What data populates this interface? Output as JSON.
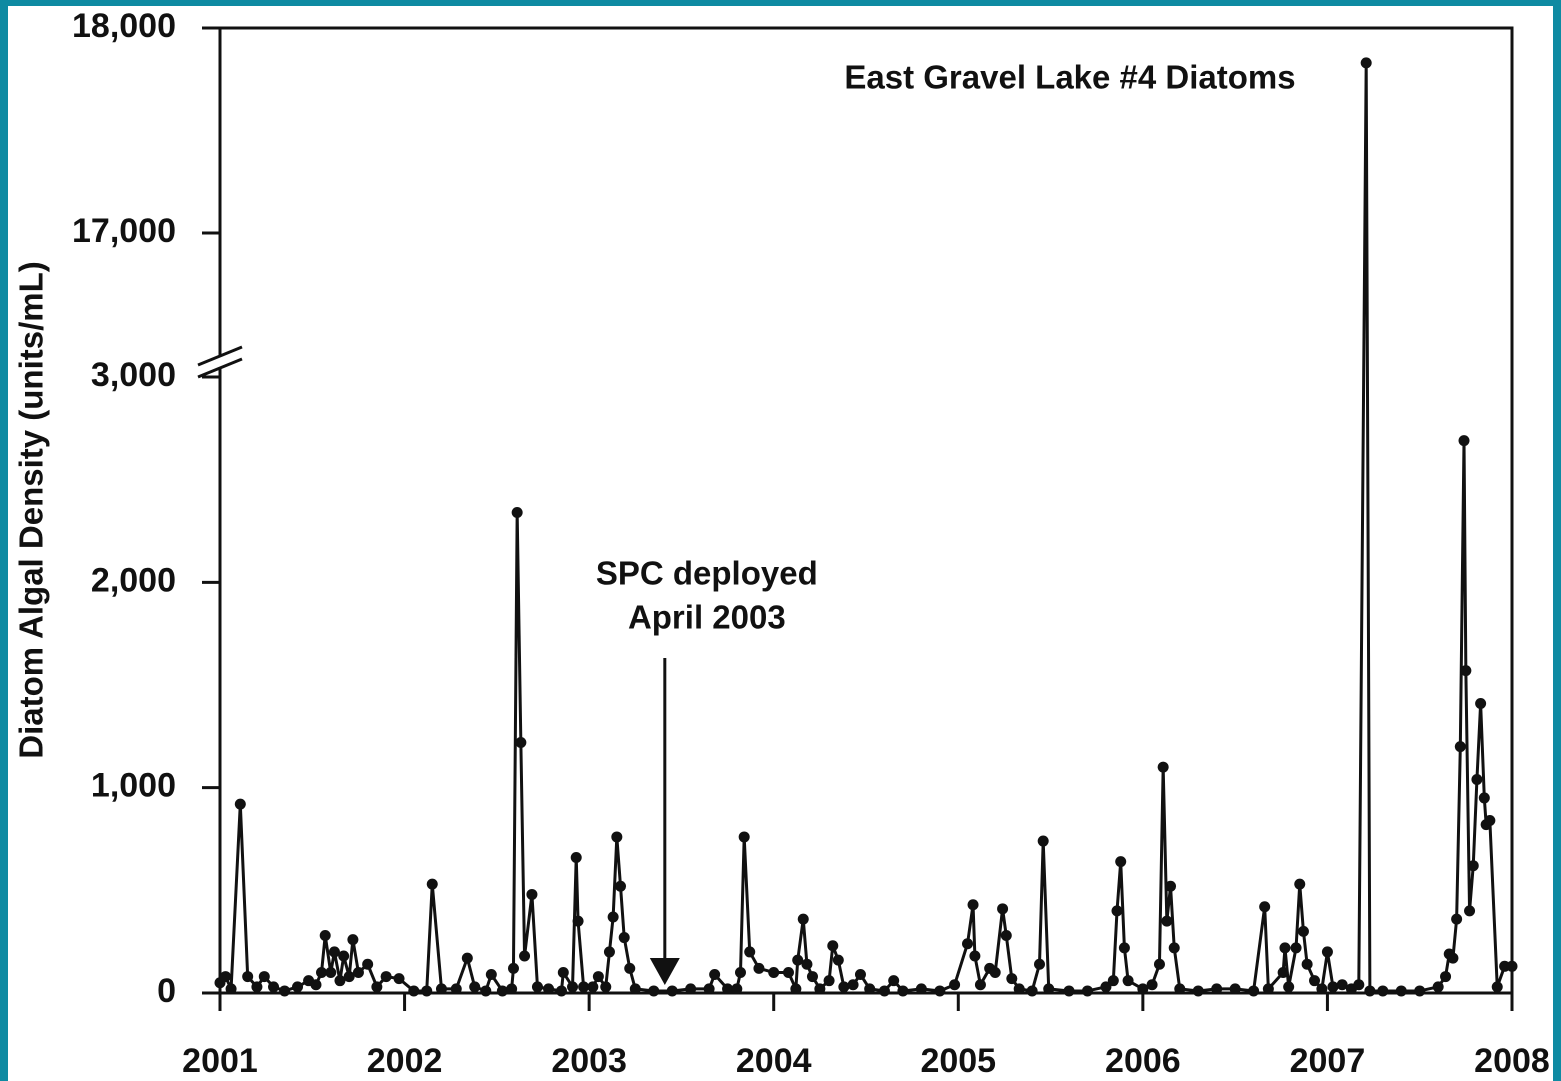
{
  "chart_data": {
    "type": "line",
    "title": "East Gravel Lake #4 Diatoms",
    "y_label": "Diatom Algal Density (units/mL)",
    "annotations": [
      {
        "text": [
          "SPC deployed",
          "April 2003"
        ],
        "x": 2003.41
      }
    ],
    "color": "#111111",
    "xlim": [
      2001,
      2008
    ],
    "xticks": [
      2001,
      2002,
      2003,
      2004,
      2005,
      2006,
      2007,
      2008
    ],
    "ylim": [
      0,
      18000
    ],
    "axis_break": [
      3000,
      17000
    ],
    "yticks": [
      0,
      {
        "value": 1000,
        "label": "1,000"
      },
      {
        "value": 2000,
        "label": "2,000"
      },
      {
        "value": 3000,
        "label": "3,000"
      },
      {
        "value": 17000,
        "label": "17,000"
      },
      {
        "value": 18000,
        "label": "18,000"
      }
    ],
    "x": [
      2001.0,
      2001.03,
      2001.06,
      2001.11,
      2001.15,
      2001.2,
      2001.24,
      2001.29,
      2001.35,
      2001.42,
      2001.48,
      2001.52,
      2001.55,
      2001.57,
      2001.6,
      2001.62,
      2001.65,
      2001.67,
      2001.7,
      2001.72,
      2001.75,
      2001.8,
      2001.85,
      2001.9,
      2001.97,
      2002.05,
      2002.12,
      2002.15,
      2002.2,
      2002.28,
      2002.34,
      2002.38,
      2002.44,
      2002.47,
      2002.53,
      2002.58,
      2002.59,
      2002.61,
      2002.63,
      2002.65,
      2002.69,
      2002.72,
      2002.78,
      2002.85,
      2002.86,
      2002.91,
      2002.93,
      2002.94,
      2002.97,
      2003.02,
      2003.05,
      2003.09,
      2003.11,
      2003.13,
      2003.15,
      2003.17,
      2003.19,
      2003.22,
      2003.25,
      2003.35,
      2003.45,
      2003.55,
      2003.65,
      2003.68,
      2003.75,
      2003.8,
      2003.82,
      2003.84,
      2003.87,
      2003.92,
      2004.0,
      2004.08,
      2004.12,
      2004.13,
      2004.16,
      2004.18,
      2004.21,
      2004.25,
      2004.3,
      2004.32,
      2004.35,
      2004.38,
      2004.43,
      2004.47,
      2004.52,
      2004.6,
      2004.65,
      2004.7,
      2004.8,
      2004.9,
      2004.98,
      2005.05,
      2005.08,
      2005.09,
      2005.12,
      2005.17,
      2005.2,
      2005.24,
      2005.26,
      2005.29,
      2005.33,
      2005.4,
      2005.44,
      2005.46,
      2005.49,
      2005.6,
      2005.7,
      2005.8,
      2005.84,
      2005.86,
      2005.88,
      2005.9,
      2005.92,
      2006.0,
      2006.05,
      2006.09,
      2006.11,
      2006.13,
      2006.15,
      2006.17,
      2006.2,
      2006.3,
      2006.4,
      2006.5,
      2006.6,
      2006.66,
      2006.68,
      2006.76,
      2006.77,
      2006.79,
      2006.83,
      2006.85,
      2006.87,
      2006.89,
      2006.93,
      2006.97,
      2007.0,
      2007.03,
      2007.08,
      2007.13,
      2007.17,
      2007.21,
      2007.23,
      2007.3,
      2007.4,
      2007.5,
      2007.6,
      2007.64,
      2007.66,
      2007.68,
      2007.7,
      2007.72,
      2007.74,
      2007.75,
      2007.77,
      2007.79,
      2007.81,
      2007.83,
      2007.85,
      2007.86,
      2007.88,
      2007.92,
      2007.96,
      2008.0
    ],
    "values": [
      50,
      80,
      20,
      920,
      80,
      30,
      80,
      30,
      10,
      30,
      60,
      40,
      100,
      280,
      100,
      200,
      60,
      180,
      80,
      260,
      100,
      140,
      30,
      80,
      70,
      10,
      10,
      530,
      20,
      20,
      170,
      30,
      10,
      90,
      10,
      20,
      120,
      2340,
      1220,
      180,
      480,
      30,
      20,
      10,
      100,
      30,
      660,
      350,
      30,
      30,
      80,
      30,
      200,
      370,
      760,
      520,
      270,
      120,
      20,
      10,
      10,
      20,
      20,
      90,
      20,
      20,
      100,
      760,
      200,
      120,
      100,
      100,
      20,
      160,
      360,
      140,
      80,
      20,
      60,
      230,
      160,
      30,
      40,
      90,
      20,
      10,
      60,
      10,
      20,
      10,
      40,
      240,
      430,
      180,
      40,
      120,
      100,
      410,
      280,
      70,
      20,
      10,
      140,
      740,
      20,
      10,
      10,
      30,
      60,
      400,
      640,
      220,
      60,
      20,
      40,
      140,
      1100,
      350,
      520,
      220,
      20,
      10,
      20,
      20,
      10,
      420,
      20,
      100,
      220,
      30,
      220,
      530,
      300,
      140,
      60,
      20,
      200,
      30,
      40,
      20,
      40,
      17830,
      10,
      10,
      10,
      10,
      30,
      80,
      190,
      170,
      360,
      1200,
      2690,
      1570,
      400,
      620,
      1040,
      1410,
      950,
      820,
      840,
      30,
      130,
      130
    ]
  }
}
